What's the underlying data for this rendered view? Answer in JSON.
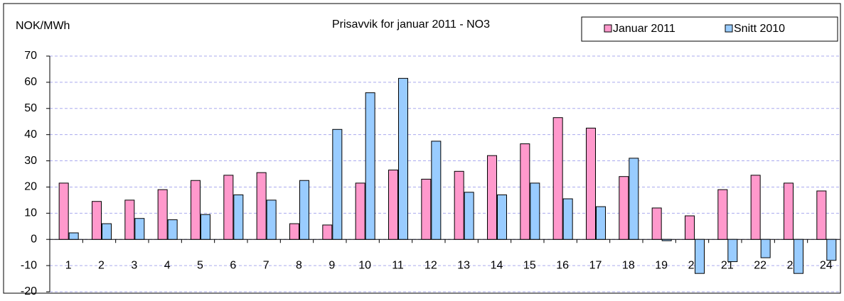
{
  "chart_data": {
    "type": "bar",
    "title": "Prisavvik for januar 2011 - NO3",
    "y_label": "NOK/MWh",
    "categories": [
      "1",
      "2",
      "3",
      "4",
      "5",
      "6",
      "7",
      "8",
      "9",
      "10",
      "11",
      "12",
      "13",
      "14",
      "15",
      "16",
      "17",
      "18",
      "19",
      "20",
      "21",
      "22",
      "23",
      "24"
    ],
    "series": [
      {
        "name": "Januar 2011",
        "color": "#ff99cc",
        "values": [
          21.5,
          14.5,
          15,
          19,
          22.5,
          24.5,
          25.5,
          6,
          5.5,
          21.5,
          26.5,
          23,
          26,
          32,
          36.5,
          46.5,
          42.5,
          24,
          12,
          9,
          19,
          24.5,
          21.5,
          18.5
        ]
      },
      {
        "name": "Snitt 2010",
        "color": "#99ccff",
        "values": [
          2.5,
          6,
          8,
          7.5,
          9.5,
          17,
          15,
          22.5,
          42,
          56,
          61.5,
          37.5,
          18,
          17,
          21.5,
          15.5,
          12.5,
          31,
          -0.5,
          -13,
          -8.5,
          -7,
          -13,
          -8
        ]
      }
    ],
    "ylim": [
      -20,
      70
    ],
    "yticks": [
      -20,
      -10,
      0,
      10,
      20,
      30,
      40,
      50,
      60,
      70
    ],
    "grid": true,
    "legend": "top-right"
  }
}
